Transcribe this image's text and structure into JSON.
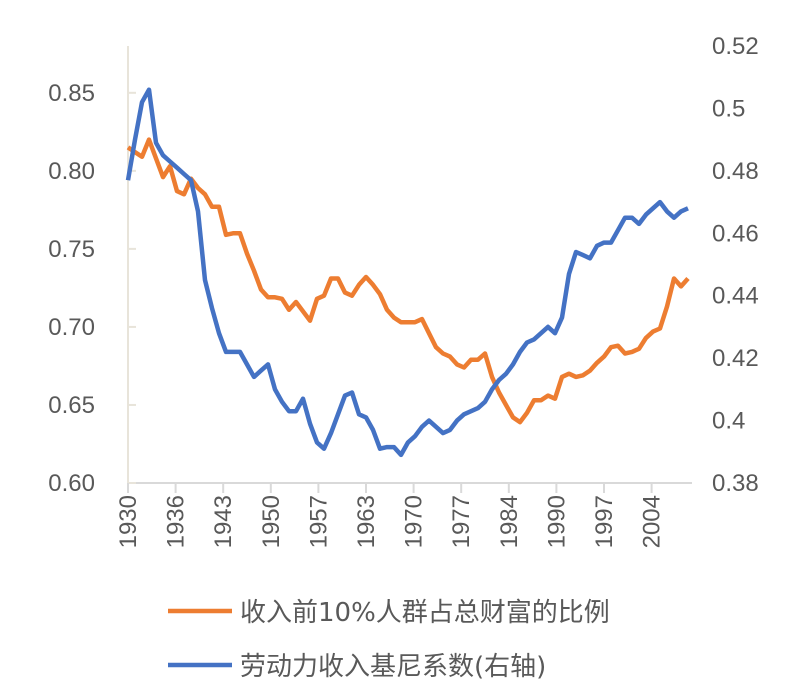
{
  "chart_data": {
    "type": "line",
    "title": "",
    "xlabel": "",
    "ylabel": "",
    "x": [
      1930,
      1931,
      1932,
      1933,
      1934,
      1935,
      1936,
      1937,
      1938,
      1939,
      1940,
      1941,
      1942,
      1943,
      1944,
      1945,
      1946,
      1947,
      1948,
      1949,
      1950,
      1951,
      1952,
      1953,
      1954,
      1955,
      1956,
      1957,
      1958,
      1959,
      1960,
      1961,
      1962,
      1963,
      1964,
      1965,
      1966,
      1967,
      1968,
      1969,
      1970,
      1971,
      1972,
      1973,
      1974,
      1975,
      1976,
      1977,
      1978,
      1979,
      1980,
      1981,
      1982,
      1983,
      1984,
      1985,
      1986,
      1987,
      1988,
      1989,
      1990,
      1991,
      1992,
      1993,
      1994,
      1995,
      1996,
      1997,
      1998,
      1999,
      2000,
      2001,
      2002,
      2003,
      2004,
      2005,
      2006,
      2007,
      2008,
      2009,
      2010
    ],
    "x_tick_labels": [
      "1930",
      "1936",
      "1943",
      "1950",
      "1957",
      "1963",
      "1970",
      "1977",
      "1984",
      "1990",
      "1997",
      "2004"
    ],
    "y_left": {
      "range": [
        0.6,
        0.88
      ],
      "tick_labels": [
        "0.60",
        "0.65",
        "0.70",
        "0.75",
        "0.80",
        "0.85"
      ],
      "ticks": [
        0.6,
        0.65,
        0.7,
        0.75,
        0.8,
        0.85
      ]
    },
    "y_right": {
      "range": [
        0.38,
        0.52
      ],
      "tick_labels": [
        "0.38",
        "0.4",
        "0.42",
        "0.44",
        "0.46",
        "0.48",
        "0.5",
        "0.52"
      ],
      "ticks": [
        0.38,
        0.4,
        0.42,
        0.44,
        0.46,
        0.48,
        0.5,
        0.52
      ]
    },
    "grid": false,
    "legend_position": "bottom",
    "series": [
      {
        "name": "收入前10%人群占总财富的比例",
        "axis": "left",
        "color": "#ED7D31",
        "values": [
          0.815,
          0.812,
          0.809,
          0.82,
          0.808,
          0.796,
          0.803,
          0.787,
          0.785,
          0.795,
          0.789,
          0.785,
          0.777,
          0.777,
          0.759,
          0.76,
          0.76,
          0.747,
          0.736,
          0.724,
          0.719,
          0.719,
          0.718,
          0.711,
          0.716,
          0.71,
          0.704,
          0.718,
          0.72,
          0.731,
          0.731,
          0.722,
          0.72,
          0.727,
          0.732,
          0.727,
          0.721,
          0.711,
          0.706,
          0.703,
          0.703,
          0.703,
          0.705,
          0.696,
          0.687,
          0.683,
          0.681,
          0.676,
          0.674,
          0.679,
          0.679,
          0.683,
          0.668,
          0.658,
          0.65,
          0.642,
          0.639,
          0.645,
          0.653,
          0.653,
          0.656,
          0.654,
          0.668,
          0.67,
          0.668,
          0.669,
          0.672,
          0.677,
          0.681,
          0.687,
          0.688,
          0.683,
          0.684,
          0.686,
          0.693,
          0.697,
          0.699,
          0.713,
          0.731,
          0.726,
          0.731
        ]
      },
      {
        "name": "劳动力收入基尼系数(右轴)",
        "axis": "right",
        "color": "#4472C4",
        "values": [
          0.477,
          0.49,
          0.502,
          0.506,
          0.489,
          0.485,
          0.483,
          0.481,
          0.479,
          0.477,
          0.467,
          0.445,
          0.436,
          0.428,
          0.422,
          0.422,
          0.422,
          0.418,
          0.414,
          0.416,
          0.418,
          0.41,
          0.406,
          0.403,
          0.403,
          0.407,
          0.399,
          0.393,
          0.391,
          0.396,
          0.402,
          0.408,
          0.409,
          0.402,
          0.401,
          0.397,
          0.391,
          0.3915,
          0.3915,
          0.389,
          0.393,
          0.395,
          0.398,
          0.4,
          0.398,
          0.396,
          0.397,
          0.4,
          0.402,
          0.403,
          0.404,
          0.406,
          0.41,
          0.413,
          0.415,
          0.418,
          0.422,
          0.425,
          0.426,
          0.428,
          0.43,
          0.428,
          0.433,
          0.447,
          0.454,
          0.453,
          0.452,
          0.456,
          0.457,
          0.457,
          0.461,
          0.465,
          0.465,
          0.463,
          0.466,
          0.468,
          0.47,
          0.467,
          0.465,
          0.467,
          0.468
        ]
      }
    ]
  }
}
